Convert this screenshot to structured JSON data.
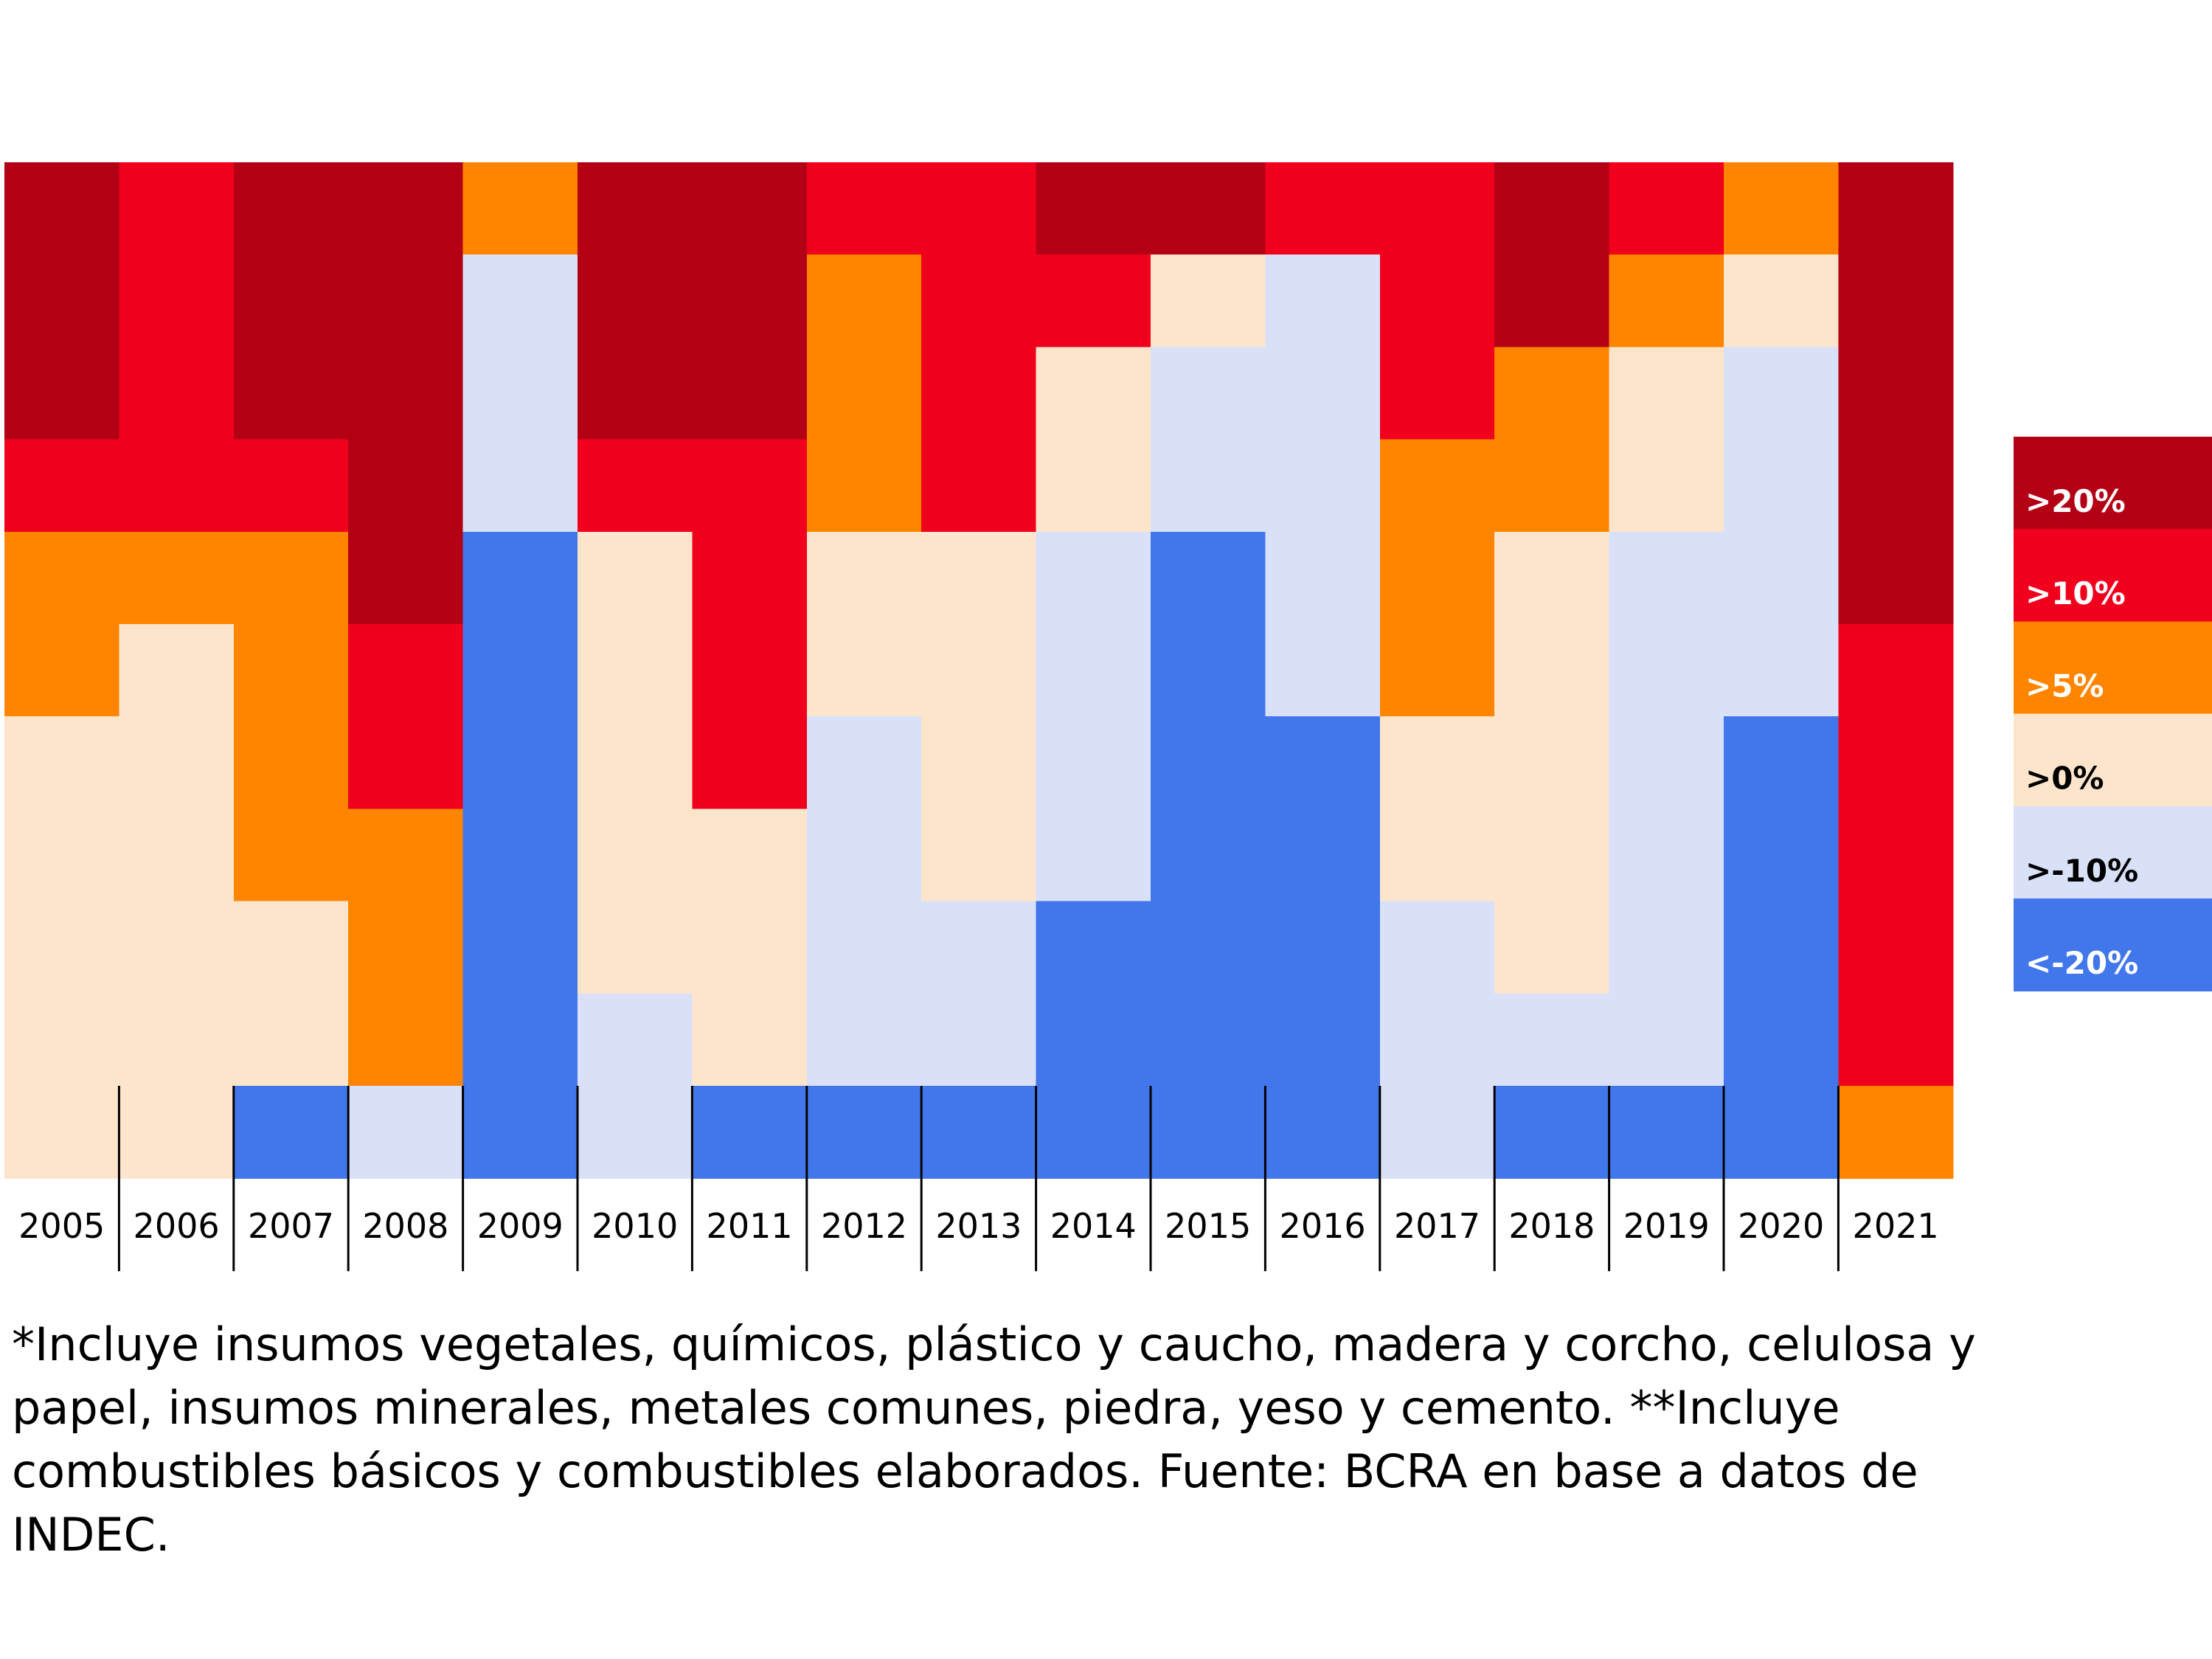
{
  "chart_data": {
    "type": "heatmap",
    "x": [
      "2005",
      "2006",
      "2007",
      "2008",
      "2009",
      "2010",
      "2011",
      "2012",
      "2013",
      "2014",
      "2015",
      "2016",
      "2017",
      "2018",
      "2019",
      "2020",
      "2021"
    ],
    "rows": 11,
    "scale": [
      {
        "label": ">20%",
        "color": "#b30015",
        "text_color": "#ffffff"
      },
      {
        "label": ">10%",
        "color": "#f0001d",
        "text_color": "#ffffff"
      },
      {
        "label": ">5%",
        "color": "#ff8500",
        "text_color": "#ffffff"
      },
      {
        "label": ">0%",
        "color": "#fde5cb",
        "text_color": "#000000"
      },
      {
        "label": ">-10%",
        "color": "#d9e1f9",
        "text_color": "#000000"
      },
      {
        "label": "<-20%",
        "color": "#4277ec",
        "text_color": "#ffffff"
      }
    ],
    "columns": [
      [
        0,
        0,
        0,
        1,
        2,
        2,
        3,
        3,
        3,
        3,
        3
      ],
      [
        1,
        1,
        1,
        1,
        2,
        3,
        3,
        3,
        3,
        3,
        3
      ],
      [
        0,
        0,
        0,
        1,
        2,
        2,
        2,
        2,
        3,
        3,
        5
      ],
      [
        0,
        0,
        0,
        0,
        0,
        1,
        1,
        2,
        2,
        2,
        4
      ],
      [
        2,
        4,
        4,
        4,
        5,
        5,
        5,
        5,
        5,
        5,
        5
      ],
      [
        0,
        0,
        0,
        1,
        3,
        3,
        3,
        3,
        3,
        4,
        4
      ],
      [
        0,
        0,
        0,
        1,
        1,
        1,
        1,
        3,
        3,
        3,
        5
      ],
      [
        1,
        2,
        2,
        2,
        3,
        3,
        4,
        4,
        4,
        4,
        5
      ],
      [
        1,
        1,
        1,
        1,
        3,
        3,
        3,
        3,
        4,
        4,
        5
      ],
      [
        0,
        1,
        3,
        3,
        4,
        4,
        4,
        4,
        5,
        5,
        5
      ],
      [
        0,
        3,
        4,
        4,
        5,
        5,
        5,
        5,
        5,
        5,
        5
      ],
      [
        1,
        4,
        4,
        4,
        4,
        4,
        5,
        5,
        5,
        5,
        5
      ],
      [
        1,
        1,
        1,
        2,
        2,
        2,
        3,
        3,
        4,
        4,
        4
      ],
      [
        0,
        0,
        2,
        2,
        3,
        3,
        3,
        3,
        3,
        4,
        5
      ],
      [
        1,
        2,
        3,
        3,
        4,
        4,
        4,
        4,
        4,
        4,
        5
      ],
      [
        2,
        3,
        4,
        4,
        4,
        4,
        5,
        5,
        5,
        5,
        5
      ],
      [
        0,
        0,
        0,
        0,
        0,
        1,
        1,
        1,
        1,
        1,
        2
      ]
    ]
  },
  "footnote": "*Incluye insumos vegetales, químicos, plástico y caucho, madera y corcho, celulosa y papel, insumos minerales, metales comunes, piedra, yeso y cemento. **Incluye combustibles básicos y combustibles elaborados. Fuente: BCRA en base a datos de INDEC."
}
